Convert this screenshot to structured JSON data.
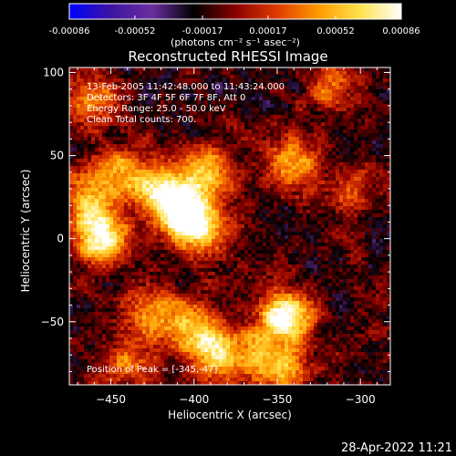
{
  "colorbar": {
    "tick_labels": [
      "-0.00086",
      "-0.00052",
      "-0.00017",
      "0.00017",
      "0.00052",
      "0.00086"
    ],
    "tick_values": [
      -0.00086,
      -0.00052,
      -0.00017,
      0.00017,
      0.00052,
      0.00086
    ],
    "range": [
      -0.00086,
      0.00086
    ],
    "units": "(photons cm⁻² s⁻¹ asec⁻²)",
    "colors": [
      "#0000ff",
      "#3c14a0",
      "#6c2ea0",
      "#000000",
      "#8a0000",
      "#e03a00",
      "#ff9a00",
      "#ffe24a",
      "#ffffff"
    ]
  },
  "chart_data": {
    "type": "heatmap",
    "title": "Reconstructed RHESSI Image",
    "xlabel": "Heliocentric X (arcsec)",
    "ylabel": "Heliocentric Y (arcsec)",
    "xlim": [
      -475,
      -282
    ],
    "ylim": [
      -88,
      103
    ],
    "x_ticks": [
      -450,
      -400,
      -350,
      -300
    ],
    "y_ticks": [
      -50,
      0,
      50,
      100
    ],
    "x_tick_labels": [
      "−450",
      "−400",
      "−350",
      "−300"
    ],
    "y_tick_labels": [
      "−50",
      "0",
      "50",
      "100"
    ],
    "colorscale_range": [
      -0.00086,
      0.00086
    ],
    "peak": {
      "x": -345,
      "y": -47
    },
    "bright_regions": [
      {
        "x": -465,
        "y": 20,
        "level": 0.6
      },
      {
        "x": -455,
        "y": 0,
        "level": 0.85
      },
      {
        "x": -445,
        "y": 40,
        "level": 0.55
      },
      {
        "x": -420,
        "y": 30,
        "level": 0.7
      },
      {
        "x": -408,
        "y": 18,
        "level": 0.9
      },
      {
        "x": -395,
        "y": 5,
        "level": 0.75
      },
      {
        "x": -392,
        "y": 40,
        "level": 0.65
      },
      {
        "x": -425,
        "y": -45,
        "level": 0.55
      },
      {
        "x": -400,
        "y": -55,
        "level": 0.6
      },
      {
        "x": -385,
        "y": -70,
        "level": 0.65
      },
      {
        "x": -440,
        "y": -75,
        "level": 0.5
      },
      {
        "x": -345,
        "y": -47,
        "level": 1.0
      },
      {
        "x": -345,
        "y": -80,
        "level": 0.45
      },
      {
        "x": -340,
        "y": 45,
        "level": 0.55
      },
      {
        "x": -360,
        "y": -70,
        "level": 0.45
      },
      {
        "x": -305,
        "y": 30,
        "level": 0.35
      },
      {
        "x": -460,
        "y": 85,
        "level": 0.45
      },
      {
        "x": -320,
        "y": 90,
        "level": 0.35
      }
    ],
    "annotations": [
      "13-Feb-2005 11:42:48.000 to 11:43:24.000",
      "Detectors: 3F 4F 5F 6F 7F 8F, Att 0",
      "Energy Range: 25.0 - 50.0 keV",
      "Clean    Total counts: 700.",
      "Position of Peak = [-345,-47]"
    ]
  },
  "footer": {
    "timestamp": "28-Apr-2022 11:21"
  }
}
